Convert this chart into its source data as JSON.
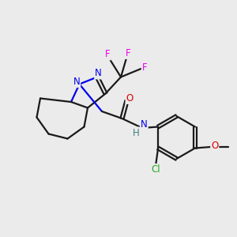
{
  "bg_color": "#ebebeb",
  "atom_colors": {
    "C": "#1a1a1a",
    "N": "#0000ee",
    "O": "#dd0000",
    "F": "#ee00ee",
    "Cl": "#22aa22",
    "H": "#408080"
  },
  "figsize": [
    3.0,
    3.0
  ],
  "dpi": 100,
  "bond_lw": 1.6,
  "font_size": 8.5
}
